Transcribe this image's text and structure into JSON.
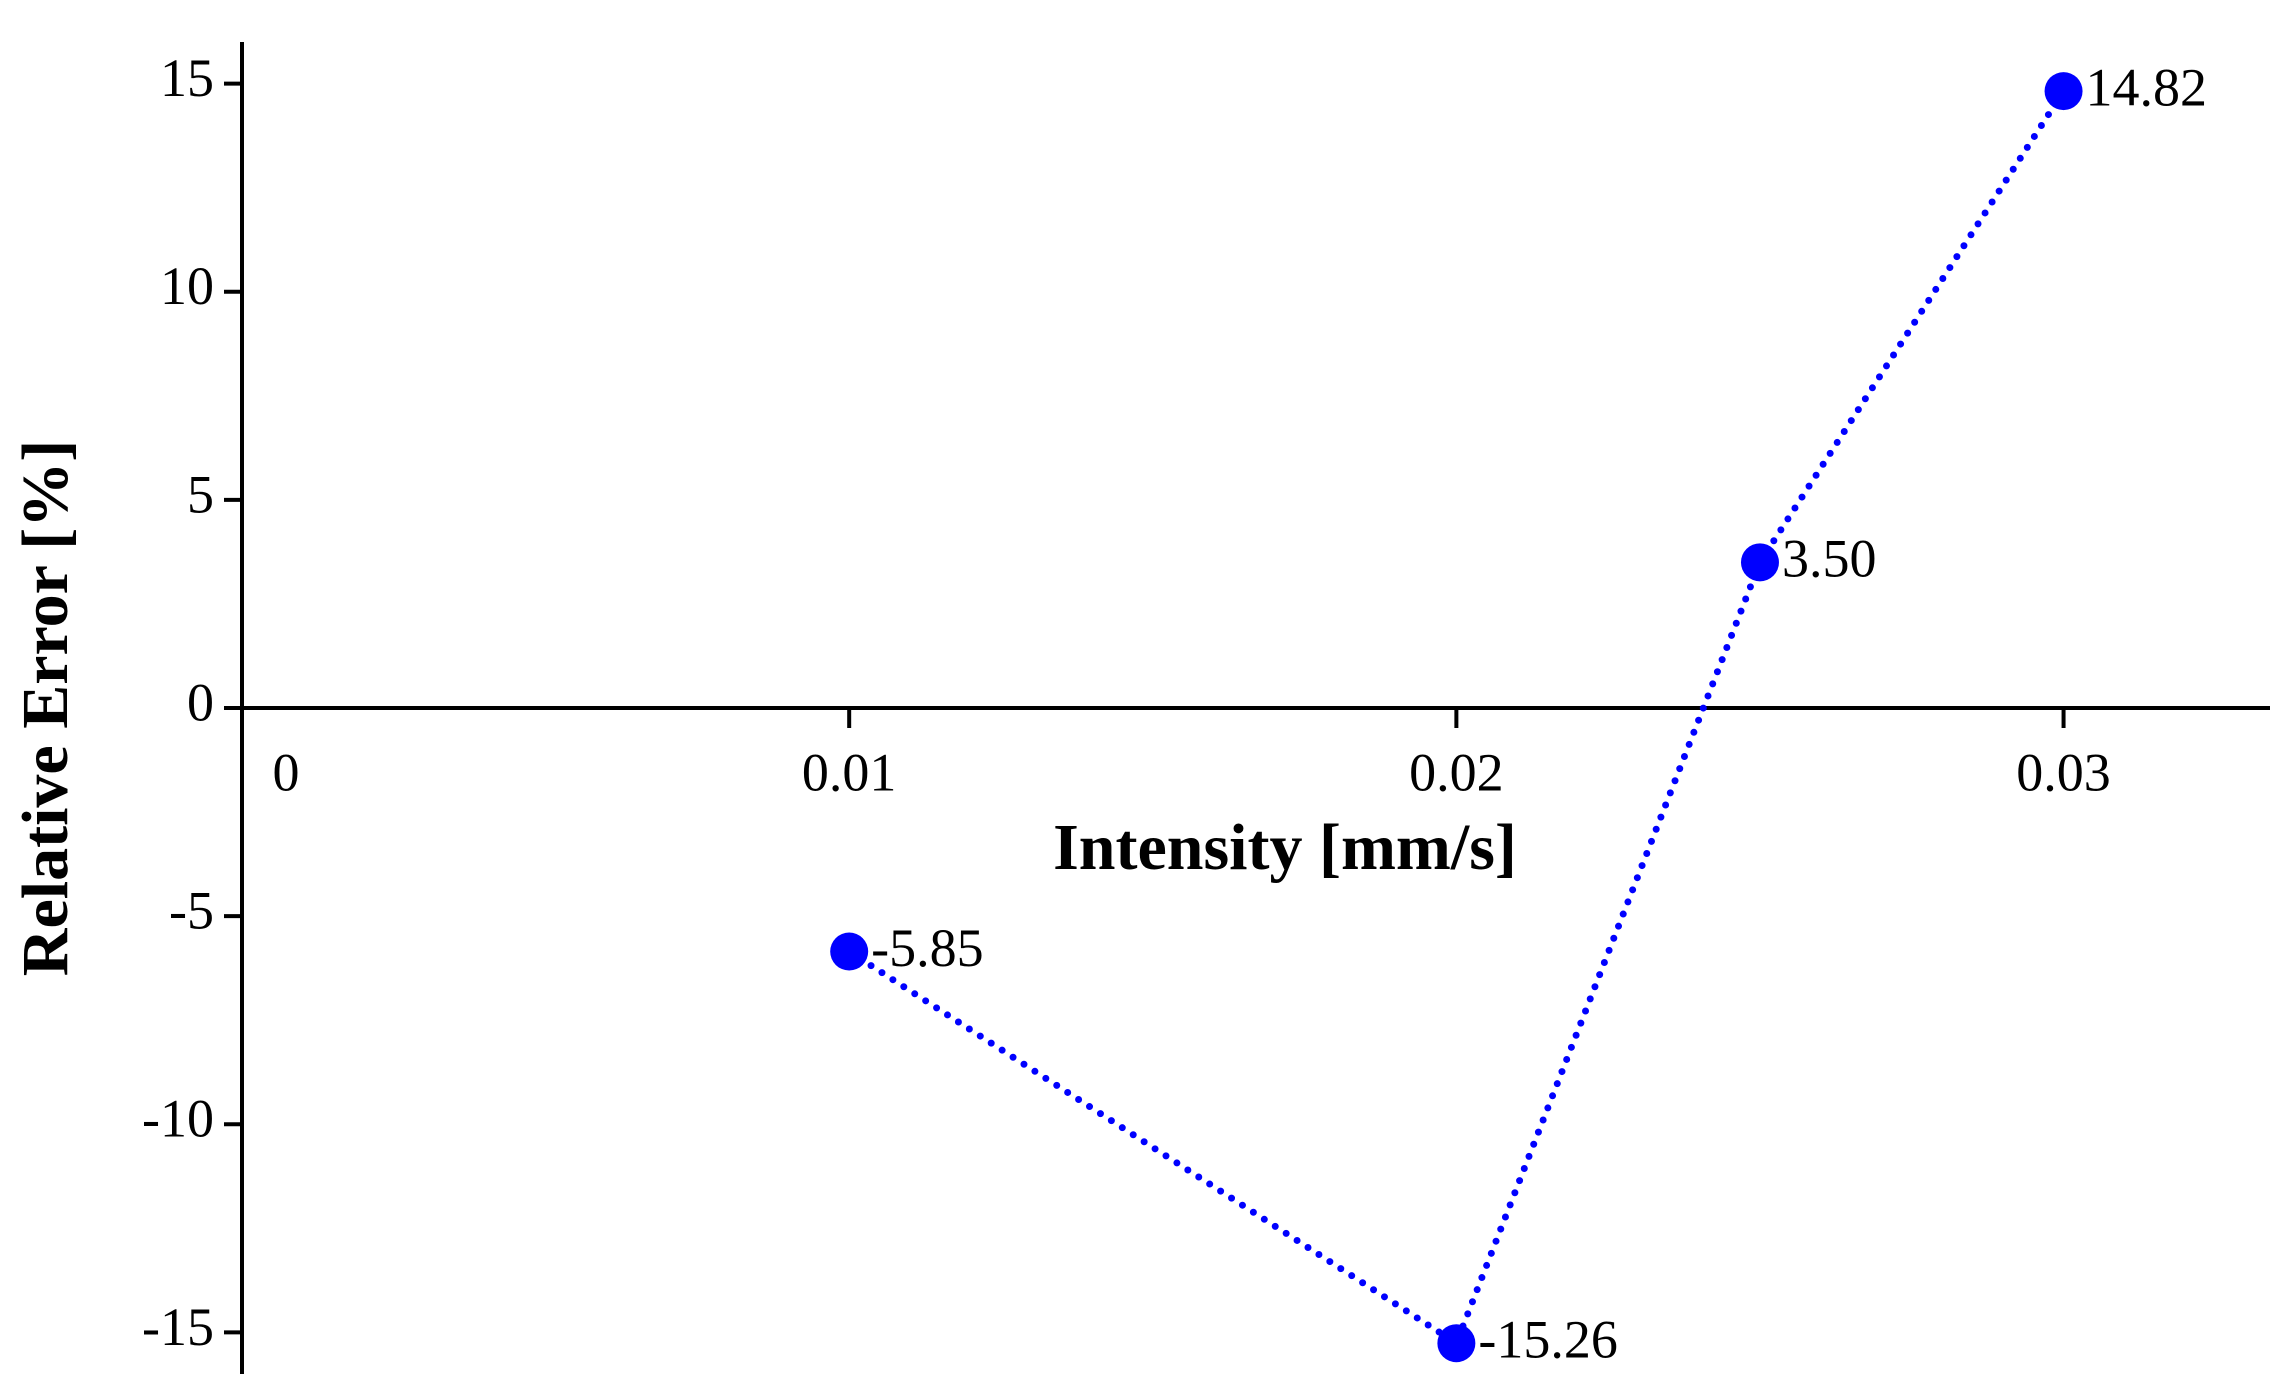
{
  "chart_data": {
    "type": "line",
    "x_label": "Intensity [mm/s]",
    "y_label": "Relative Error [%]",
    "x": [
      0.01,
      0.02,
      0.025,
      0.03
    ],
    "series": [
      {
        "color": "#0000ff",
        "values": [
          -5.85,
          -15.26,
          3.5,
          14.82
        ],
        "value_labels": [
          "-5.85",
          "-15.26",
          "3.50",
          "14.82"
        ]
      }
    ],
    "xlim": [
      0,
      0.0334
    ],
    "xticks": [
      0,
      0.01,
      0.02,
      0.03
    ],
    "ylim": [
      -16,
      16
    ],
    "yticks": [
      -15,
      -10,
      -5,
      0,
      5,
      10,
      15
    ],
    "grid": false,
    "line_style": "dotted",
    "markers": true
  }
}
